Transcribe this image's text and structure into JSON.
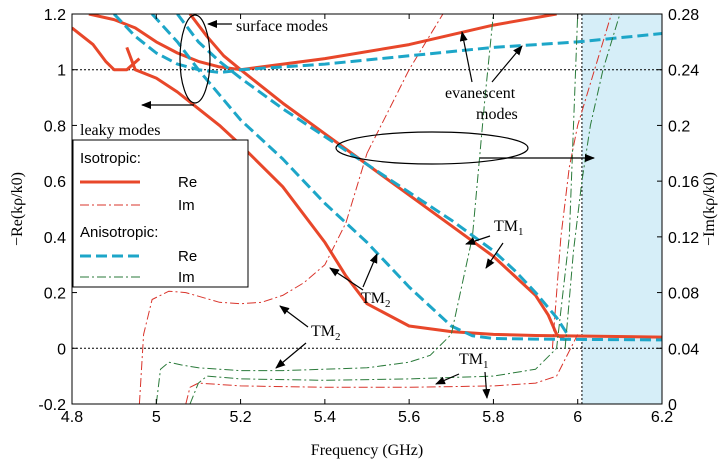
{
  "chart_data": {
    "type": "line",
    "xlabel": "Frequency (GHz)",
    "ylabel_left": "−Re(kρ/k0)",
    "ylabel_right": "−Im(kρ/k0)",
    "xlim": [
      4.8,
      6.2
    ],
    "ylim_left": [
      -0.2,
      1.2
    ],
    "ylim_right": [
      0,
      0.28
    ],
    "x_ticks": [
      4.8,
      5,
      5.2,
      5.4,
      5.6,
      5.8,
      6,
      6.2
    ],
    "x_tick_labels": [
      "4.8",
      "5",
      "5.2",
      "5.4",
      "5.6",
      "5.8",
      "6",
      "6.2"
    ],
    "y_left_ticks": [
      -0.2,
      0,
      0.2,
      0.4,
      0.6,
      0.8,
      1,
      1.2
    ],
    "y_left_tick_labels": [
      "-0.2",
      "0",
      "0.2",
      "0.4",
      "0.6",
      "0.8",
      "1",
      "1.2"
    ],
    "y_right_ticks": [
      0,
      0.04,
      0.08,
      0.12,
      0.16,
      0.2,
      0.24,
      0.28
    ],
    "y_right_tick_labels": [
      "0",
      "0.04",
      "0.08",
      "0.12",
      "0.16",
      "0.2",
      "0.24",
      "0.28"
    ],
    "reference_lines": {
      "y_left": [
        0,
        1
      ],
      "x": [
        6.01
      ]
    },
    "shaded_region": {
      "x": [
        6.01,
        6.2
      ],
      "color": "#d6eef8"
    },
    "colors": {
      "isotropic": "#e8472a",
      "anisotropic": "#1da6c8",
      "im_iso": "#d9342b",
      "im_aniso": "#2a7a3a"
    },
    "legend": {
      "groups": [
        {
          "title": "Isotropic:",
          "entries": [
            "Re",
            "Im"
          ]
        },
        {
          "title": "Anisotropic:",
          "entries": [
            "Re",
            "Im"
          ]
        }
      ]
    },
    "annotations": [
      "surface modes",
      "leaky modes",
      "evanescent",
      "modes",
      "TM",
      "TM",
      "TM",
      "TM"
    ],
    "annotation_subscripts": [
      "1",
      "2",
      "2",
      "1"
    ],
    "series": [
      {
        "group": "Isotropic",
        "part": "Re",
        "axis": "left",
        "x": [
          4.8,
          4.85,
          4.88,
          4.9,
          4.93,
          4.96
        ],
        "y": [
          1.15,
          1.09,
          1.03,
          1.0,
          1.0,
          1.04
        ]
      },
      {
        "group": "Isotropic",
        "part": "Re",
        "axis": "left",
        "x": [
          4.84,
          4.9,
          4.95,
          5.0,
          5.05,
          5.1,
          5.15,
          5.2
        ],
        "y": [
          1.2,
          1.18,
          1.15,
          1.1,
          1.06,
          1.03,
          1.01,
          1.0
        ]
      },
      {
        "group": "Isotropic",
        "part": "Re",
        "axis": "left",
        "x": [
          5.2,
          5.4,
          5.6,
          5.8,
          5.95
        ],
        "y": [
          1.0,
          1.04,
          1.09,
          1.16,
          1.2
        ]
      },
      {
        "group": "Isotropic",
        "part": "Re",
        "axis": "left",
        "x": [
          4.93,
          4.95,
          5.0,
          5.05,
          5.1,
          5.15,
          5.2,
          5.3,
          5.4,
          5.45,
          5.5,
          5.6,
          5.7,
          5.8,
          5.9,
          6.0,
          6.2
        ],
        "y": [
          1.08,
          1.0,
          0.97,
          0.92,
          0.86,
          0.8,
          0.73,
          0.58,
          0.38,
          0.26,
          0.16,
          0.08,
          0.06,
          0.05,
          0.046,
          0.044,
          0.04
        ]
      },
      {
        "group": "Isotropic",
        "part": "Re",
        "axis": "left",
        "x": [
          5.08,
          5.12,
          5.16,
          5.2,
          5.3,
          5.4,
          5.5,
          5.6,
          5.7,
          5.8,
          5.85,
          5.9,
          5.93,
          5.95,
          5.97
        ],
        "y": [
          1.2,
          1.12,
          1.05,
          1.0,
          0.88,
          0.77,
          0.66,
          0.55,
          0.44,
          0.33,
          0.26,
          0.19,
          0.12,
          0.05,
          0.03
        ]
      },
      {
        "group": "Isotropic",
        "part": "Im",
        "axis": "right",
        "x": [
          4.96,
          4.97,
          4.99,
          5.03,
          5.07,
          5.15,
          5.2,
          5.25,
          5.3,
          5.35,
          5.4,
          5.45,
          5.5
        ],
        "y": [
          0,
          0.05,
          0.075,
          0.081,
          0.08,
          0.073,
          0.072,
          0.073,
          0.078,
          0.087,
          0.1,
          0.13,
          0.18
        ]
      },
      {
        "group": "Isotropic",
        "part": "Im",
        "axis": "right",
        "x": [
          5.5,
          5.55,
          5.6,
          5.65,
          5.68
        ],
        "y": [
          0.18,
          0.21,
          0.24,
          0.265,
          0.28
        ]
      },
      {
        "group": "Isotropic",
        "part": "Im",
        "axis": "right",
        "x": [
          5.07,
          5.08,
          5.1,
          5.2,
          5.4,
          5.6,
          5.8,
          5.9,
          5.95,
          6.0
        ],
        "y": [
          0,
          0.012,
          0.015,
          0.013,
          0.012,
          0.012,
          0.013,
          0.015,
          0.02,
          0.05
        ]
      },
      {
        "group": "Isotropic",
        "part": "Im",
        "axis": "right",
        "x": [
          5.94,
          5.96,
          5.98,
          6.0,
          6.02,
          6.05,
          6.08
        ],
        "y": [
          0.04,
          0.12,
          0.17,
          0.2,
          0.22,
          0.25,
          0.28
        ]
      },
      {
        "group": "Anisotropic",
        "part": "Re",
        "axis": "left",
        "x": [
          4.9,
          4.95,
          5.0,
          5.05,
          5.1,
          5.15,
          5.18,
          5.2,
          5.4,
          5.6,
          5.8,
          6.0,
          6.2
        ],
        "y": [
          1.2,
          1.12,
          1.06,
          1.02,
          1.0,
          0.99,
          0.995,
          1.0,
          1.02,
          1.05,
          1.08,
          1.1,
          1.13
        ]
      },
      {
        "group": "Anisotropic",
        "part": "Re",
        "axis": "left",
        "x": [
          4.99,
          5.05,
          5.1,
          5.15,
          5.2,
          5.3,
          5.4,
          5.5,
          5.55,
          5.6,
          5.65,
          5.7,
          5.75,
          5.8,
          5.9,
          6.0,
          6.2
        ],
        "y": [
          1.2,
          1.1,
          1.0,
          0.91,
          0.82,
          0.68,
          0.52,
          0.38,
          0.3,
          0.22,
          0.15,
          0.08,
          0.045,
          0.035,
          0.033,
          0.032,
          0.03
        ]
      },
      {
        "group": "Anisotropic",
        "part": "Re",
        "axis": "left",
        "x": [
          5.05,
          5.1,
          5.15,
          5.2,
          5.3,
          5.4,
          5.5,
          5.6,
          5.7,
          5.8,
          5.85,
          5.9,
          5.95,
          5.98
        ],
        "y": [
          1.2,
          1.1,
          1.03,
          0.97,
          0.86,
          0.76,
          0.66,
          0.56,
          0.46,
          0.35,
          0.28,
          0.2,
          0.11,
          0.04
        ]
      },
      {
        "group": "Anisotropic",
        "part": "Im",
        "axis": "right",
        "x": [
          5.0,
          5.01,
          5.03,
          5.06,
          5.1,
          5.2,
          5.3,
          5.4,
          5.5,
          5.6,
          5.65,
          5.7,
          5.75,
          5.78,
          5.8
        ],
        "y": [
          0,
          0.025,
          0.03,
          0.028,
          0.026,
          0.024,
          0.024,
          0.025,
          0.026,
          0.03,
          0.035,
          0.05,
          0.12,
          0.22,
          0.28
        ]
      },
      {
        "group": "Anisotropic",
        "part": "Im",
        "axis": "right",
        "x": [
          5.08,
          5.1,
          5.12,
          5.2,
          5.4,
          5.6,
          5.8,
          5.9,
          5.95,
          5.98,
          6.0
        ],
        "y": [
          0,
          0.015,
          0.02,
          0.018,
          0.017,
          0.018,
          0.02,
          0.025,
          0.04,
          0.12,
          0.28
        ]
      },
      {
        "group": "Anisotropic",
        "part": "Im",
        "axis": "right",
        "x": [
          5.97,
          5.99,
          6.01,
          6.03,
          6.06,
          6.1
        ],
        "y": [
          0.04,
          0.11,
          0.16,
          0.2,
          0.24,
          0.28
        ]
      }
    ]
  }
}
